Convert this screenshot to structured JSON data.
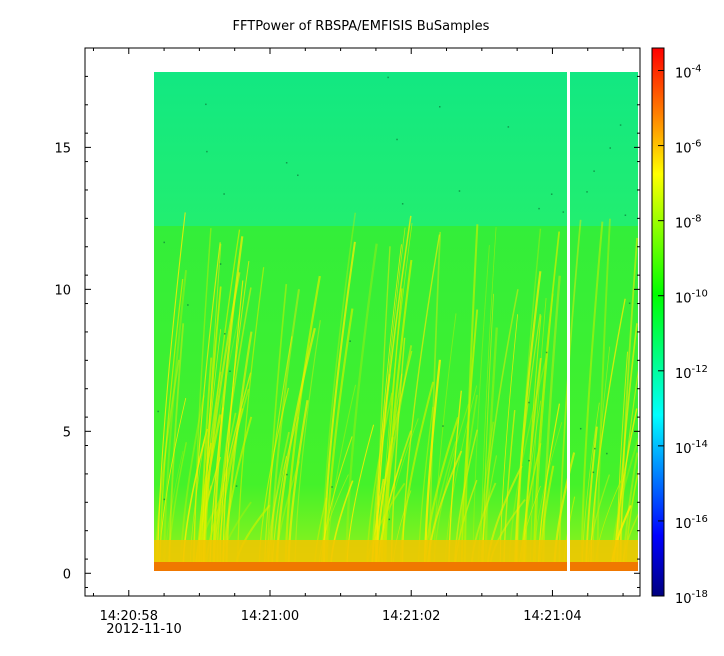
{
  "chart_data": {
    "type": "heatmap",
    "title": "FFTPower of RBSPA/EMFISIS  BuSamples",
    "xlabel": "",
    "ylabel": "",
    "x_range": [
      "14:20:57.38",
      "14:21:05.24"
    ],
    "ylim": [
      -0.8,
      18.5
    ],
    "data_x_range": [
      "14:20:58.38",
      "14:21:05.24"
    ],
    "data_y_range": [
      0,
      17.5
    ],
    "data_gap_at": "14:21:04.25",
    "x_tick_labels": [
      "14:20:58",
      "14:21:00",
      "14:21:02",
      "14:21:04"
    ],
    "x_tick_date_label": "2012-11-10",
    "y_ticks": [
      0,
      5,
      10,
      15
    ],
    "y_tick_labels": [
      "0",
      "5",
      "10",
      "15"
    ],
    "colorbar": {
      "scale": "log",
      "range_exponent": [
        -18,
        -3.4
      ],
      "tick_base": "10",
      "tick_exponents": [
        "-4",
        "-6",
        "-8",
        "-10",
        "-12",
        "-14",
        "-16",
        "-18"
      ],
      "colors": [
        "#00007f",
        "#0000ff",
        "#007fff",
        "#00ffff",
        "#00ff7f",
        "#00ff00",
        "#7fff00",
        "#ffff00",
        "#ff7f00",
        "#ff0000"
      ]
    },
    "regions": [
      {
        "band": "above 12.2",
        "level": "~1e-11 (green-cyan)"
      },
      {
        "band": "0.5 to 12.2",
        "level": "~1e-10 (green) with chorus risers ~1e-8 (yellow)"
      },
      {
        "band": "below 0.5",
        "level": "~1e-7 to 1e-6 (orange)"
      }
    ],
    "grid": false
  }
}
